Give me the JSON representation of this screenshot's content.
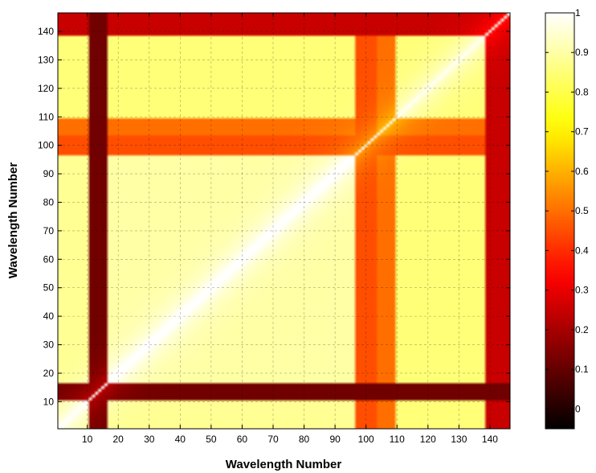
{
  "chart_data": {
    "type": "heatmap",
    "title": "",
    "xlabel": "Wavelength Number",
    "ylabel": "Wavelength Number",
    "xlim": [
      1,
      146
    ],
    "ylim": [
      1,
      146
    ],
    "x_ticks": [
      10,
      20,
      30,
      40,
      50,
      60,
      70,
      80,
      90,
      100,
      110,
      120,
      130,
      140
    ],
    "y_ticks": [
      10,
      20,
      30,
      40,
      50,
      60,
      70,
      80,
      90,
      100,
      110,
      120,
      130,
      140
    ],
    "grid": true,
    "colormap": "hot",
    "colorbar": {
      "range": [
        -0.05,
        1
      ],
      "ticks": [
        0,
        0.1,
        0.2,
        0.3,
        0.4,
        0.5,
        0.6,
        0.7,
        0.8,
        0.9,
        1
      ],
      "tick_labels": [
        "0",
        "0.1",
        "0.2",
        "0.3",
        "0.4",
        "0.5",
        "0.6",
        "0.7",
        "0.8",
        "0.9",
        "1"
      ]
    },
    "matrix": {
      "size": 146,
      "symmetric": true,
      "diagonal_value": 1,
      "wavelength_groups": [
        {
          "range": [
            1,
            10
          ],
          "level": 0.88
        },
        {
          "range": [
            11,
            16
          ],
          "level": 0.12
        },
        {
          "range": [
            17,
            96
          ],
          "level": 0.9
        },
        {
          "range": [
            97,
            103
          ],
          "level": 0.45
        },
        {
          "range": [
            104,
            109
          ],
          "level": 0.5
        },
        {
          "range": [
            110,
            138
          ],
          "level": 0.85
        },
        {
          "range": [
            139,
            146
          ],
          "level": 0.25
        }
      ]
    }
  }
}
